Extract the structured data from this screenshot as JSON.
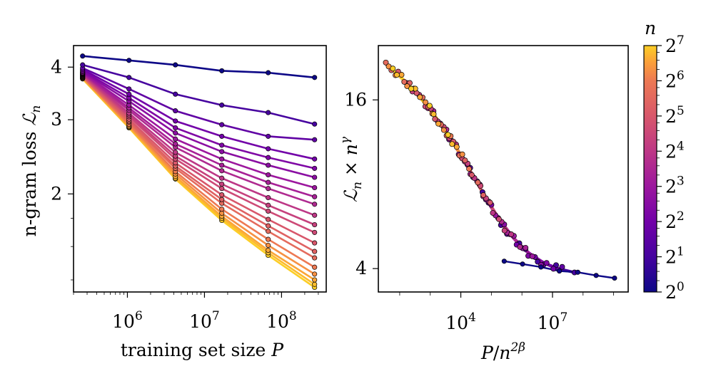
{
  "chart_data": [
    {
      "panel": "left",
      "type": "line",
      "xlabel": "training set size P",
      "ylabel": "n-gram loss ℒn",
      "xscale": "log",
      "yscale": "log",
      "xlim": [
        200000,
        380000000
      ],
      "ylim": [
        1.17,
        4.5
      ],
      "xticks": [
        {
          "value": 1000000,
          "base": "10",
          "exp": "6"
        },
        {
          "value": 10000000,
          "base": "10",
          "exp": "7"
        },
        {
          "value": 100000000,
          "base": "10",
          "exp": "8"
        }
      ],
      "yticks": [
        {
          "value": 2,
          "label": "2"
        },
        {
          "value": 3,
          "label": "3"
        },
        {
          "value": 4,
          "label": "4"
        }
      ],
      "x": [
        262144,
        1048576,
        4194304,
        16777216,
        67108864,
        268435456
      ],
      "series_colormap": "plasma",
      "series_n": [
        1,
        2,
        3,
        4,
        5,
        6,
        8,
        10,
        12,
        16,
        20,
        24,
        32,
        40,
        48,
        64,
        80,
        96,
        112,
        128
      ],
      "series": [
        {
          "n": 1,
          "values": [
            4.25,
            4.15,
            4.05,
            3.92,
            3.88,
            3.78
          ]
        },
        {
          "n": 2,
          "values": [
            4.05,
            3.78,
            3.45,
            3.25,
            3.12,
            2.93
          ]
        },
        {
          "n": 3,
          "values": [
            3.98,
            3.55,
            3.15,
            2.92,
            2.74,
            2.69
          ]
        },
        {
          "n": 4,
          "values": [
            3.95,
            3.45,
            2.98,
            2.74,
            2.56,
            2.42
          ]
        },
        {
          "n": 5,
          "values": [
            3.92,
            3.38,
            2.87,
            2.61,
            2.44,
            2.3
          ]
        },
        {
          "n": 6,
          "values": [
            3.9,
            3.32,
            2.79,
            2.52,
            2.34,
            2.19
          ]
        },
        {
          "n": 8,
          "values": [
            3.88,
            3.25,
            2.7,
            2.42,
            2.22,
            2.07
          ]
        },
        {
          "n": 10,
          "values": [
            3.87,
            3.2,
            2.63,
            2.34,
            2.13,
            1.97
          ]
        },
        {
          "n": 12,
          "values": [
            3.86,
            3.16,
            2.58,
            2.27,
            2.06,
            1.89
          ]
        },
        {
          "n": 16,
          "values": [
            3.85,
            3.11,
            2.51,
            2.18,
            1.96,
            1.78
          ]
        },
        {
          "n": 20,
          "values": [
            3.84,
            3.08,
            2.46,
            2.11,
            1.88,
            1.69
          ]
        },
        {
          "n": 24,
          "values": [
            3.83,
            3.05,
            2.42,
            2.06,
            1.82,
            1.62
          ]
        },
        {
          "n": 32,
          "values": [
            3.82,
            3.01,
            2.37,
            1.99,
            1.74,
            1.53
          ]
        },
        {
          "n": 40,
          "values": [
            3.81,
            2.98,
            2.33,
            1.94,
            1.68,
            1.46
          ]
        },
        {
          "n": 48,
          "values": [
            3.8,
            2.96,
            2.3,
            1.9,
            1.63,
            1.41
          ]
        },
        {
          "n": 64,
          "values": [
            3.79,
            2.93,
            2.26,
            1.84,
            1.56,
            1.34
          ]
        },
        {
          "n": 80,
          "values": [
            3.78,
            2.91,
            2.23,
            1.8,
            1.51,
            1.29
          ]
        },
        {
          "n": 96,
          "values": [
            3.77,
            2.89,
            2.2,
            1.77,
            1.47,
            1.25
          ]
        },
        {
          "n": 112,
          "values": [
            3.76,
            2.88,
            2.18,
            1.75,
            1.45,
            1.22
          ]
        },
        {
          "n": 128,
          "values": [
            3.75,
            2.87,
            2.17,
            1.73,
            1.43,
            1.2
          ]
        }
      ]
    },
    {
      "panel": "right",
      "type": "scatter",
      "xlabel": "P/n^{2β}",
      "ylabel": "ℒn × n^γ",
      "xscale": "log",
      "yscale": "log",
      "xlim": [
        20,
        3000000000
      ],
      "ylim": [
        3.3,
        25
      ],
      "xticks": [
        {
          "value": 10000,
          "base": "10",
          "exp": "4"
        },
        {
          "value": 10000000,
          "base": "10",
          "exp": "7"
        }
      ],
      "yticks": [
        {
          "value": 4,
          "label": "4"
        },
        {
          "value": 16,
          "label": "16"
        }
      ],
      "collapse_curve": {
        "x": [
          35,
          100,
          300,
          1000,
          3000,
          10000,
          30000,
          100000,
          300000,
          1000000,
          3000000,
          10000000,
          30000000,
          100000000,
          300000000,
          1000000000
        ],
        "y": [
          21.5,
          19.5,
          17.3,
          14.8,
          12.5,
          10.2,
          8.3,
          6.6,
          5.5,
          4.75,
          4.3,
          4.05,
          3.92,
          3.82,
          3.72,
          3.62
        ]
      },
      "n1_curve": {
        "x": [
          262144,
          1048576,
          4194304,
          16777216,
          67108864,
          268435456,
          1073741824
        ],
        "y": [
          4.25,
          4.15,
          4.05,
          3.92,
          3.88,
          3.78,
          3.7
        ]
      }
    }
  ],
  "colorbar": {
    "title": "n",
    "scale": "log2",
    "range": [
      1,
      128
    ],
    "colormap": "plasma",
    "ticks": [
      {
        "value": 1,
        "base": "2",
        "exp": "0"
      },
      {
        "value": 2,
        "base": "2",
        "exp": "1"
      },
      {
        "value": 4,
        "base": "2",
        "exp": "2"
      },
      {
        "value": 8,
        "base": "2",
        "exp": "3"
      },
      {
        "value": 16,
        "base": "2",
        "exp": "4"
      },
      {
        "value": 32,
        "base": "2",
        "exp": "5"
      },
      {
        "value": 64,
        "base": "2",
        "exp": "6"
      },
      {
        "value": 128,
        "base": "2",
        "exp": "7"
      }
    ]
  },
  "labels": {
    "left_xlabel_text": "training set size ",
    "left_xlabel_var": "P",
    "left_ylabel_text": "n-gram loss ",
    "left_ylabel_var": "ℒ",
    "left_ylabel_sub": "n",
    "right_xlabel_var": "P",
    "right_xlabel_mid": "/",
    "right_xlabel_n": "n",
    "right_xlabel_sup": "2β",
    "right_ylabel_var": "ℒ",
    "right_ylabel_sub": "n",
    "right_ylabel_mid": " × ",
    "right_ylabel_n": "n",
    "right_ylabel_sup": "γ",
    "colorbar_title": "n"
  }
}
